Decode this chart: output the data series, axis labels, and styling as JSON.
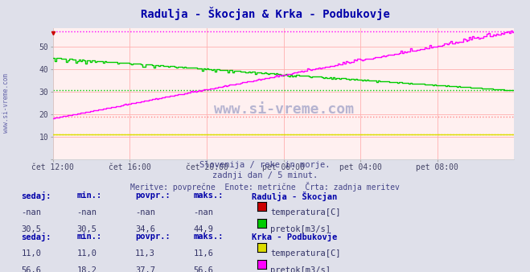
{
  "title": "Radulja - Škocjan & Krka - Podbukovje",
  "bg_color": "#e8e8f0",
  "plot_bg": "#fff0f0",
  "grid_color": "#ffb0b0",
  "yticks": [
    0,
    10,
    20,
    30,
    40,
    50
  ],
  "ylim": [
    0,
    58
  ],
  "xlim": [
    0,
    288
  ],
  "xtick_labels": [
    "čet 12:00",
    "čet 16:00",
    "čet 20:00",
    "pet 00:00",
    "pet 04:00",
    "pet 08:00"
  ],
  "xtick_positions": [
    0,
    48,
    96,
    144,
    192,
    240
  ],
  "subtitle1": "Slovenija / reke in morje.",
  "subtitle2": "zadnji dan / 5 minut.",
  "subtitle3": "Meritve: povprečne  Enote: metrične  Črta: zadnja meritev",
  "watermark": "www.si-vreme.com",
  "legend_entries": [
    {
      "label": "temperatura[C]",
      "color": "#cc0000"
    },
    {
      "label": "pretok[m3/s]",
      "color": "#00cc00"
    },
    {
      "label": "temperatura[C]",
      "color": "#dddd00"
    },
    {
      "label": "pretok[m3/s]",
      "color": "#ff00ff"
    }
  ],
  "stats": [
    {
      "station": "Radulja - Škocjan",
      "rows": [
        {
          "label": "temperatura[C]",
          "color": "#cc0000",
          "sedaj": "-nan",
          "min": "-nan",
          "povpr": "-nan",
          "maks": "-nan"
        },
        {
          "label": "pretok[m3/s]",
          "color": "#00cc00",
          "sedaj": "30,5",
          "min": "30,5",
          "povpr": "34,6",
          "maks": "44,9"
        }
      ]
    },
    {
      "station": "Krka - Podbukovje",
      "rows": [
        {
          "label": "temperatura[C]",
          "color": "#dddd00",
          "sedaj": "11,0",
          "min": "11,0",
          "povpr": "11,3",
          "maks": "11,6"
        },
        {
          "label": "pretok[m3/s]",
          "color": "#ff00ff",
          "sedaj": "56,6",
          "min": "18,2",
          "povpr": "37,7",
          "maks": "56,6"
        }
      ]
    }
  ],
  "hlines": [
    {
      "y": 56.6,
      "color": "#ff00ff"
    },
    {
      "y": 30.5,
      "color": "#00cc00"
    },
    {
      "y": 19.0,
      "color": "#ff8888"
    },
    {
      "y": 11.0,
      "color": "#dddd00"
    }
  ],
  "radulja_pretok_start": 45.0,
  "radulja_pretok_end": 30.5,
  "krka_pretok_start": 18.2,
  "krka_pretok_end": 56.6,
  "krka_temp_value": 11.0,
  "n_points": 289
}
